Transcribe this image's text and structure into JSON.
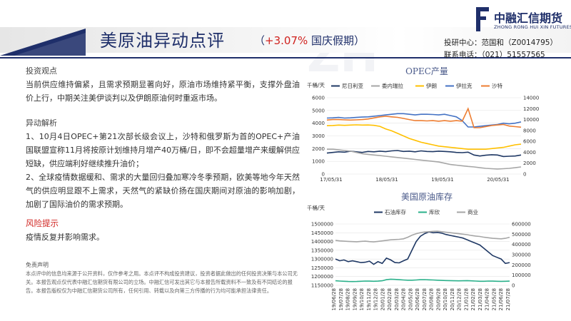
{
  "header": {
    "title": "美原油异动点评",
    "subtitle_open": "（",
    "subtitle_pct": "+3.07%",
    "subtitle_rest": " 国庆假期）",
    "colors": {
      "navy": "#1f2f6a",
      "red": "#d0231f"
    }
  },
  "logo": {
    "cn": "中融汇信期货",
    "en": "ZHONG RONG HUI XIN FUTURES",
    "watermark": "ZH"
  },
  "contact": {
    "center_label": "投研中心：",
    "center_value": "范国和（Z0014795）",
    "phone_label": "联系电话：",
    "phone_value": "（021）51557565"
  },
  "left": {
    "view_heading": "投资观点",
    "view_text": "当前供应维持偏紧，且需求预期显著向好，原油市场维持紧平衡，支撑外盘油价上行，中期关注美伊谈判以及伊朗原油何时重返市场。",
    "analysis_heading": "异动解析",
    "point1": "1、10月4日OPEC+第21次部长级会议上，沙特和俄罗斯为首的OPEC+产油国联盟宣称11月将按原计划维持月增产40万桶/日，即不会超量增产来缓解供应短缺，供应端利好继续推升油价；",
    "point2": "2、全球疫情数据缓和、需求的大量回归叠加寒冷冬季预期，欧美等地今年天然气的供应明显跟不上需求，天然气的紧缺价扬在国庆期间对原油的影响加剧，加剧了国际油价的需求预期。",
    "risk_heading": "风险提示",
    "risk_text": "疫情反复并影响需求。",
    "disclaimer_heading": "免责声明",
    "disclaimer_text": "本点评中的信息均来源于公开资料，仅作参考之用。本点评不构成投资建议，投资者据此做出的任何投资决策与本公司无关。本报告观点仅代表中融汇信期货有限公司的立场。中融汇信可发出其它与本报告所载资料不一致及有不同结论的报告。本报告版权仅为中融汇信期货公司所有，任何引用、转载以及向第三方传播的行为均可能承担法律责任。"
  },
  "chart_data": [
    {
      "type": "line",
      "title": "OPEC产量",
      "unit_label": "千桶/天",
      "x_ticks": [
        "17/05/31",
        "18/05/31",
        "19/05/31",
        "20/05/31"
      ],
      "y_left": {
        "min": 0,
        "max": 6000,
        "ticks": [
          0,
          1000,
          2000,
          3000,
          4000,
          5000,
          6000
        ]
      },
      "y_right": {
        "min": 0,
        "max": 14000,
        "ticks": [
          0,
          2000,
          4000,
          6000,
          8000,
          10000,
          12000,
          14000
        ]
      },
      "series": [
        {
          "name": "尼日利亚",
          "color": "#1f3864",
          "axis": "left",
          "values": [
            1650,
            1700,
            1750,
            1720,
            1800,
            1750,
            1700,
            1780,
            1750,
            1800,
            1760,
            1820,
            1850,
            1780,
            1800,
            1750,
            1820,
            1780,
            1760,
            1800,
            1780,
            1750,
            1700,
            1680,
            1720,
            1500,
            1420,
            1480,
            1520,
            1500,
            1380,
            1400,
            1420,
            1500
          ]
        },
        {
          "name": "委内瑞拉",
          "color": "#a6a6a6",
          "axis": "left",
          "values": [
            1950,
            1950,
            1900,
            1850,
            1800,
            1700,
            1600,
            1550,
            1500,
            1450,
            1400,
            1350,
            1300,
            1250,
            1200,
            1150,
            1100,
            1050,
            1000,
            950,
            850,
            750,
            700,
            650,
            600,
            560,
            500,
            450,
            420,
            400,
            420,
            450,
            500,
            560
          ]
        },
        {
          "name": "伊朗",
          "color": "#ffc000",
          "axis": "left",
          "values": [
            3800,
            3820,
            3850,
            3830,
            3850,
            3870,
            3850,
            3860,
            3830,
            3750,
            3550,
            3400,
            3200,
            3000,
            2800,
            2650,
            2500,
            2400,
            2300,
            2200,
            2150,
            2100,
            2050,
            2000,
            1950,
            1950,
            1950,
            1950,
            2000,
            2050,
            2100,
            2200,
            2300,
            2350
          ]
        },
        {
          "name": "伊拉克",
          "color": "#4472c4",
          "axis": "left",
          "values": [
            4400,
            4420,
            4450,
            4400,
            4420,
            4450,
            4480,
            4500,
            4550,
            4600,
            4650,
            4700,
            4750,
            4750,
            4700,
            4650,
            4700,
            4700,
            4680,
            4650,
            4700,
            4600,
            4500,
            4200,
            3700,
            3700,
            3750,
            3800,
            3850,
            3900,
            4000,
            3950,
            4000,
            4100
          ]
        },
        {
          "name": "沙特",
          "color": "#ed7d31",
          "axis": "right",
          "values": [
            9900,
            10000,
            10000,
            9950,
            9900,
            9950,
            10000,
            10100,
            10300,
            10500,
            10600,
            10500,
            10400,
            10200,
            10000,
            9800,
            9800,
            9750,
            9800,
            9700,
            9800,
            9700,
            9800,
            9700,
            12000,
            8500,
            8500,
            8700,
            8900,
            9000,
            9100,
            8800,
            8700,
            8600
          ]
        }
      ]
    },
    {
      "type": "line",
      "title": "美国原油库存",
      "unit_label": "千桶/天",
      "x_ticks": [
        "19/06/28",
        "19/07/28",
        "19/08/28",
        "19/09/28",
        "19/10/28",
        "19/11/28",
        "19/12/28",
        "20/01/28",
        "20/02/28",
        "20/03/28",
        "20/04/28",
        "20/05/28",
        "20/06/28",
        "20/07/28",
        "20/08/28",
        "20/09/28",
        "20/10/28",
        "20/11/28",
        "20/12/28",
        "21/01/28",
        "21/02/28",
        "21/03/28",
        "21/04/28",
        "21/05/28",
        "21/06/28",
        "21/07/28"
      ],
      "y_left": {
        "min": 1150000,
        "max": 1500000,
        "ticks": [
          1150000,
          1200000,
          1250000,
          1300000,
          1350000,
          1400000,
          1450000,
          1500000
        ]
      },
      "y_right": {
        "min": 0,
        "max": 600000,
        "ticks": [
          0,
          100000,
          200000,
          300000,
          400000,
          500000,
          600000
        ]
      },
      "series": [
        {
          "name": "石油库存",
          "color": "#1f3864",
          "axis": "left",
          "values": [
            1300000,
            1290000,
            1295000,
            1285000,
            1290000,
            1285000,
            1280000,
            1282000,
            1288000,
            1270000,
            1285000,
            1275000,
            1305000,
            1295000,
            1280000,
            1278000,
            1290000,
            1300000,
            1350000,
            1400000,
            1430000,
            1445000,
            1455000,
            1450000,
            1452000,
            1448000,
            1440000,
            1435000,
            1430000,
            1425000,
            1420000,
            1410000,
            1400000,
            1390000,
            1380000,
            1360000,
            1340000,
            1320000,
            1310000,
            1300000,
            1275000,
            1280000
          ]
        },
        {
          "name": "库欣",
          "color": "#2ab08a",
          "axis": "right",
          "values": [
            45000,
            42000,
            40000,
            38000,
            37000,
            38000,
            40000,
            42000,
            41000,
            40000,
            41000,
            45000,
            55000,
            60000,
            58000,
            55000,
            52000,
            50000,
            50000,
            52000,
            55000,
            56000,
            54000,
            52000,
            50000,
            48000,
            47000,
            46000,
            45000,
            44000,
            45000,
            46000,
            44000,
            42000,
            40000,
            40000,
            42000,
            41000,
            40000,
            39000,
            40000,
            41000
          ]
        },
        {
          "name": "商业",
          "color": "#a6a6a6",
          "axis": "right",
          "values": [
            440000,
            435000,
            432000,
            430000,
            428000,
            426000,
            430000,
            432000,
            428000,
            425000,
            430000,
            435000,
            440000,
            445000,
            448000,
            450000,
            455000,
            470000,
            490000,
            505000,
            515000,
            522000,
            525000,
            528000,
            530000,
            525000,
            520000,
            515000,
            510000,
            505000,
            500000,
            495000,
            488000,
            482000,
            478000,
            470000,
            465000,
            460000,
            458000,
            455000,
            460000,
            470000
          ]
        }
      ]
    }
  ]
}
